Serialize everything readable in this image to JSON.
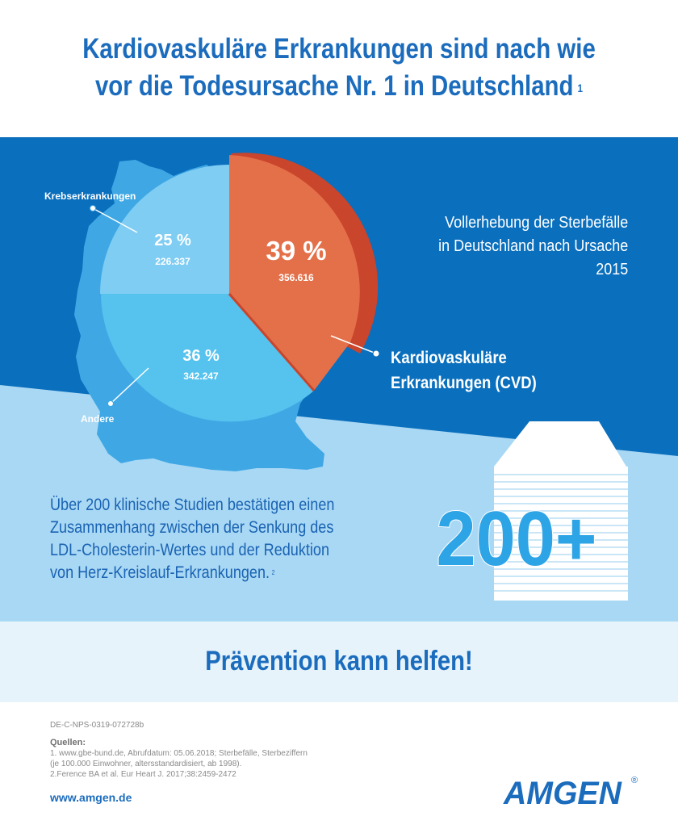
{
  "title": {
    "line1": "Kardiovaskuläre Erkrankungen sind nach wie",
    "line2": "vor die Todesursache Nr. 1 in Deutschland",
    "footnote": "1"
  },
  "subtitle": {
    "line1": "Vollerhebung der Sterbefälle",
    "line2": "in Deutschland nach Ursache",
    "line3": "2015"
  },
  "chart_data": {
    "type": "pie",
    "slices": [
      {
        "name": "Kardiovaskuläre Erkrankungen (CVD)",
        "percent_label": "39 %",
        "value_label": "356.616",
        "value": 356616,
        "percent": 39,
        "color": "#e4704a"
      },
      {
        "name": "Andere",
        "percent_label": "36 %",
        "value_label": "342.247",
        "value": 342247,
        "percent": 36,
        "color": "#56c2ee"
      },
      {
        "name": "Krebserkrankungen",
        "percent_label": "25 %",
        "value_label": "226.337",
        "value": 226337,
        "percent": 25,
        "color": "#7fcdf3"
      }
    ]
  },
  "labels": {
    "cancer": "Krebserkrankungen",
    "other": "Andere",
    "cvd_line1": "Kardiovaskuläre",
    "cvd_line2": "Erkrankungen (CVD)"
  },
  "studies": {
    "line1": "Über 200 klinische Studien bestätigen einen",
    "line2": "Zusammenhang zwischen der Senkung des",
    "line3": "LDL-Cholesterin-Wertes und der Reduktion",
    "line4": "von Herz-Kreislauf-Erkrankungen.",
    "footnote": "2",
    "big_number": "200+"
  },
  "prevention": "Prävention kann helfen!",
  "ref_code": "DE-C-NPS-0319-072728b",
  "sources": {
    "heading": "Quellen:",
    "line1": "1. www.gbe-bund.de, Abrufdatum: 05.06.2018; Sterbefälle, Sterbeziffern",
    "line2": "(je 100.000 Einwohner, altersstandardisiert, ab 1998).",
    "line3": "2.Ference BA et al. Eur Heart J. 2017;38:2459-2472"
  },
  "url": "www.amgen.de",
  "logo": {
    "text": "AMGEN",
    "mark": "®"
  },
  "colors": {
    "dark_blue": "#0a6fbd",
    "light_blue": "#a9d8f4",
    "title_blue": "#1b6cbd",
    "cvd_orange": "#e4704a"
  }
}
